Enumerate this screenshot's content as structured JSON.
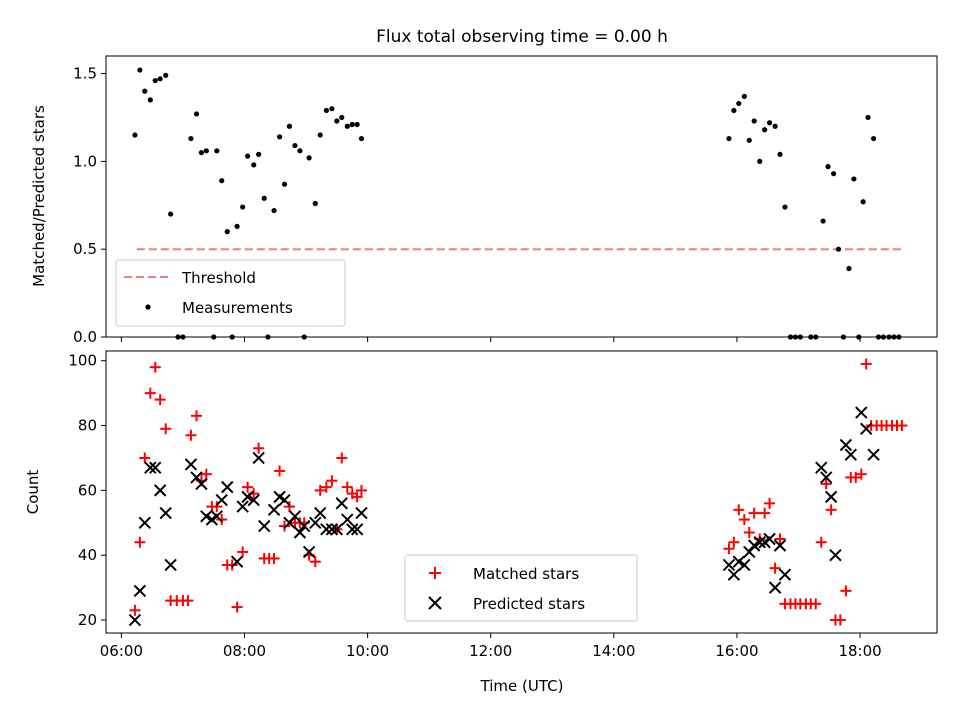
{
  "chart_data": [
    {
      "type": "scatter",
      "title": "Flux total observing time = 0.00 h",
      "xlabel": "",
      "ylabel": "Matched/Predicted stars",
      "ylim": [
        0,
        1.6
      ],
      "yticks": [
        0.0,
        0.5,
        1.0,
        1.5
      ],
      "ytick_labels": [
        "0.0",
        "0.5",
        "1.0",
        "1.5"
      ],
      "x_unit": "hours UTC",
      "xlim": [
        5.75,
        19.25
      ],
      "threshold": {
        "name": "Threshold",
        "value": 0.5,
        "x_range": [
          6.25,
          18.67
        ],
        "color": "#f08080",
        "style": "dashed"
      },
      "series": [
        {
          "name": "Measurements",
          "color": "#000000",
          "marker": "dot",
          "points": [
            [
              6.22,
              1.15
            ],
            [
              6.3,
              1.52
            ],
            [
              6.38,
              1.4
            ],
            [
              6.47,
              1.35
            ],
            [
              6.55,
              1.46
            ],
            [
              6.63,
              1.47
            ],
            [
              6.72,
              1.49
            ],
            [
              6.8,
              0.7
            ],
            [
              6.92,
              0.0
            ],
            [
              7.0,
              0.0
            ],
            [
              7.13,
              1.13
            ],
            [
              7.22,
              1.27
            ],
            [
              7.3,
              1.05
            ],
            [
              7.38,
              1.06
            ],
            [
              7.5,
              0.0
            ],
            [
              7.55,
              1.06
            ],
            [
              7.63,
              0.89
            ],
            [
              7.72,
              0.6
            ],
            [
              7.8,
              0.0
            ],
            [
              7.88,
              0.63
            ],
            [
              7.97,
              0.74
            ],
            [
              8.05,
              1.03
            ],
            [
              8.15,
              0.98
            ],
            [
              8.23,
              1.04
            ],
            [
              8.32,
              0.79
            ],
            [
              8.38,
              0.0
            ],
            [
              8.48,
              0.72
            ],
            [
              8.57,
              1.14
            ],
            [
              8.65,
              0.87
            ],
            [
              8.73,
              1.2
            ],
            [
              8.82,
              1.09
            ],
            [
              8.9,
              1.06
            ],
            [
              8.97,
              0.0
            ],
            [
              9.05,
              1.02
            ],
            [
              9.15,
              0.76
            ],
            [
              9.23,
              1.15
            ],
            [
              9.33,
              1.29
            ],
            [
              9.42,
              1.3
            ],
            [
              9.5,
              1.23
            ],
            [
              9.58,
              1.25
            ],
            [
              9.67,
              1.2
            ],
            [
              9.75,
              1.21
            ],
            [
              9.83,
              1.21
            ],
            [
              9.9,
              1.13
            ],
            [
              15.87,
              1.13
            ],
            [
              15.95,
              1.29
            ],
            [
              16.03,
              1.33
            ],
            [
              16.12,
              1.37
            ],
            [
              16.2,
              1.12
            ],
            [
              16.28,
              1.23
            ],
            [
              16.37,
              1.0
            ],
            [
              16.45,
              1.18
            ],
            [
              16.53,
              1.22
            ],
            [
              16.62,
              1.2
            ],
            [
              16.7,
              1.04
            ],
            [
              16.78,
              0.74
            ],
            [
              16.87,
              0.0
            ],
            [
              16.95,
              0.0
            ],
            [
              17.03,
              0.0
            ],
            [
              17.2,
              0.0
            ],
            [
              17.28,
              0.0
            ],
            [
              17.4,
              0.66
            ],
            [
              17.48,
              0.97
            ],
            [
              17.57,
              0.93
            ],
            [
              17.65,
              0.5
            ],
            [
              17.73,
              0.0
            ],
            [
              17.82,
              0.39
            ],
            [
              17.9,
              0.9
            ],
            [
              17.98,
              0.0
            ],
            [
              18.05,
              0.77
            ],
            [
              18.13,
              1.25
            ],
            [
              18.22,
              1.13
            ],
            [
              18.3,
              0.0
            ],
            [
              18.38,
              0.0
            ],
            [
              18.47,
              0.0
            ],
            [
              18.55,
              0.0
            ],
            [
              18.63,
              0.0
            ]
          ]
        }
      ],
      "legend": {
        "location": "lower-left",
        "entries": [
          "Threshold",
          "Measurements"
        ]
      }
    },
    {
      "type": "scatter",
      "title": "",
      "xlabel": "Time (UTC)",
      "ylabel": "Count",
      "ylim": [
        16,
        103
      ],
      "yticks": [
        20,
        40,
        60,
        80,
        100
      ],
      "ytick_labels": [
        "20",
        "40",
        "60",
        "80",
        "100"
      ],
      "xlim": [
        5.75,
        19.25
      ],
      "xticks": [
        6,
        8,
        10,
        12,
        14,
        16,
        18
      ],
      "xtick_labels": [
        "06:00",
        "08:00",
        "10:00",
        "12:00",
        "14:00",
        "16:00",
        "18:00"
      ],
      "series": [
        {
          "name": "Matched stars",
          "color": "#ff0000",
          "marker": "plus",
          "points": [
            [
              6.22,
              23
            ],
            [
              6.3,
              44
            ],
            [
              6.38,
              70
            ],
            [
              6.47,
              90
            ],
            [
              6.55,
              98
            ],
            [
              6.63,
              88
            ],
            [
              6.72,
              79
            ],
            [
              6.8,
              26
            ],
            [
              6.9,
              26
            ],
            [
              7.0,
              26
            ],
            [
              7.08,
              26
            ],
            [
              7.13,
              77
            ],
            [
              7.22,
              83
            ],
            [
              7.3,
              63
            ],
            [
              7.38,
              65
            ],
            [
              7.47,
              55
            ],
            [
              7.55,
              55
            ],
            [
              7.63,
              51
            ],
            [
              7.72,
              37
            ],
            [
              7.8,
              37
            ],
            [
              7.88,
              24
            ],
            [
              7.97,
              41
            ],
            [
              8.05,
              61
            ],
            [
              8.15,
              59
            ],
            [
              8.23,
              73
            ],
            [
              8.32,
              39
            ],
            [
              8.4,
              39
            ],
            [
              8.48,
              39
            ],
            [
              8.57,
              66
            ],
            [
              8.65,
              49
            ],
            [
              8.73,
              55
            ],
            [
              8.82,
              50
            ],
            [
              8.9,
              50
            ],
            [
              8.97,
              50
            ],
            [
              9.05,
              40
            ],
            [
              9.15,
              38
            ],
            [
              9.23,
              60
            ],
            [
              9.33,
              61
            ],
            [
              9.42,
              63
            ],
            [
              9.5,
              48
            ],
            [
              9.58,
              70
            ],
            [
              9.67,
              61
            ],
            [
              9.75,
              59
            ],
            [
              9.83,
              58
            ],
            [
              9.9,
              60
            ],
            [
              15.87,
              42
            ],
            [
              15.95,
              44
            ],
            [
              16.03,
              54
            ],
            [
              16.12,
              51
            ],
            [
              16.2,
              47
            ],
            [
              16.28,
              53
            ],
            [
              16.37,
              45
            ],
            [
              16.45,
              53
            ],
            [
              16.53,
              56
            ],
            [
              16.62,
              36
            ],
            [
              16.7,
              45
            ],
            [
              16.78,
              25
            ],
            [
              16.87,
              25
            ],
            [
              16.95,
              25
            ],
            [
              17.03,
              25
            ],
            [
              17.12,
              25
            ],
            [
              17.2,
              25
            ],
            [
              17.28,
              25
            ],
            [
              17.37,
              44
            ],
            [
              17.45,
              62
            ],
            [
              17.53,
              54
            ],
            [
              17.6,
              20
            ],
            [
              17.68,
              20
            ],
            [
              17.77,
              29
            ],
            [
              17.85,
              64
            ],
            [
              17.93,
              64
            ],
            [
              18.02,
              65
            ],
            [
              18.1,
              99
            ],
            [
              18.18,
              80
            ],
            [
              18.27,
              80
            ],
            [
              18.35,
              80
            ],
            [
              18.43,
              80
            ],
            [
              18.52,
              80
            ],
            [
              18.6,
              80
            ],
            [
              18.68,
              80
            ]
          ]
        },
        {
          "name": "Predicted stars",
          "color": "#000000",
          "marker": "x",
          "points": [
            [
              6.22,
              20
            ],
            [
              6.3,
              29
            ],
            [
              6.38,
              50
            ],
            [
              6.47,
              67
            ],
            [
              6.55,
              67
            ],
            [
              6.63,
              60
            ],
            [
              6.72,
              53
            ],
            [
              6.8,
              37
            ],
            [
              7.13,
              68
            ],
            [
              7.22,
              64
            ],
            [
              7.3,
              62
            ],
            [
              7.38,
              52
            ],
            [
              7.47,
              51
            ],
            [
              7.55,
              52
            ],
            [
              7.63,
              57
            ],
            [
              7.72,
              61
            ],
            [
              7.88,
              38
            ],
            [
              7.97,
              55
            ],
            [
              8.05,
              58
            ],
            [
              8.15,
              57
            ],
            [
              8.23,
              70
            ],
            [
              8.32,
              49
            ],
            [
              8.48,
              54
            ],
            [
              8.57,
              58
            ],
            [
              8.65,
              57
            ],
            [
              8.73,
              50
            ],
            [
              8.82,
              52
            ],
            [
              8.9,
              47
            ],
            [
              8.97,
              49
            ],
            [
              9.05,
              41
            ],
            [
              9.15,
              50
            ],
            [
              9.23,
              53
            ],
            [
              9.33,
              48
            ],
            [
              9.42,
              48
            ],
            [
              9.5,
              48
            ],
            [
              9.58,
              56
            ],
            [
              9.67,
              51
            ],
            [
              9.75,
              48
            ],
            [
              9.83,
              48
            ],
            [
              9.9,
              53
            ],
            [
              15.87,
              37
            ],
            [
              15.95,
              34
            ],
            [
              16.03,
              38
            ],
            [
              16.12,
              37
            ],
            [
              16.2,
              41
            ],
            [
              16.28,
              43
            ],
            [
              16.37,
              44
            ],
            [
              16.45,
              44
            ],
            [
              16.53,
              45
            ],
            [
              16.62,
              30
            ],
            [
              16.7,
              43
            ],
            [
              16.78,
              34
            ],
            [
              17.37,
              67
            ],
            [
              17.45,
              64
            ],
            [
              17.53,
              58
            ],
            [
              17.6,
              40
            ],
            [
              17.77,
              74
            ],
            [
              17.85,
              71
            ],
            [
              18.02,
              84
            ],
            [
              18.1,
              79
            ],
            [
              18.22,
              71
            ]
          ]
        }
      ],
      "legend": {
        "location": "lower-center",
        "entries": [
          "Matched stars",
          "Predicted stars"
        ]
      }
    }
  ]
}
